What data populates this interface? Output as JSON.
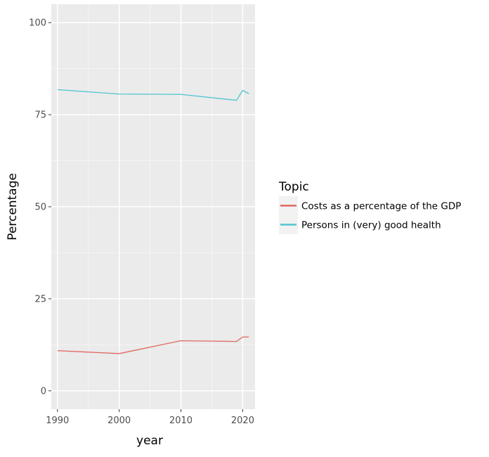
{
  "chart_data": {
    "type": "line",
    "xlabel": "year",
    "ylabel": "Percentage",
    "xlim": [
      1989,
      2022
    ],
    "ylim": [
      -5,
      105
    ],
    "x_ticks": [
      1990,
      2000,
      2010,
      2020
    ],
    "y_ticks": [
      0,
      25,
      50,
      75,
      100
    ],
    "grid": true,
    "legend": {
      "title": "Topic",
      "placement": "right"
    },
    "series": [
      {
        "name": "Costs as a percentage of the GDP",
        "color": "#e0675f",
        "points": [
          {
            "x": 1990,
            "y": 10.9
          },
          {
            "x": 2000,
            "y": 10.1
          },
          {
            "x": 2010,
            "y": 13.6
          },
          {
            "x": 2019,
            "y": 13.4
          },
          {
            "x": 2020,
            "y": 14.6
          },
          {
            "x": 2021,
            "y": 14.6
          }
        ]
      },
      {
        "name": "Persons in (very) good health",
        "color": "#4fc5cf",
        "points": [
          {
            "x": 1990,
            "y": 81.8
          },
          {
            "x": 2000,
            "y": 80.6
          },
          {
            "x": 2010,
            "y": 80.5
          },
          {
            "x": 2019,
            "y": 78.9
          },
          {
            "x": 2020,
            "y": 81.6
          },
          {
            "x": 2021,
            "y": 80.7
          }
        ]
      }
    ]
  }
}
